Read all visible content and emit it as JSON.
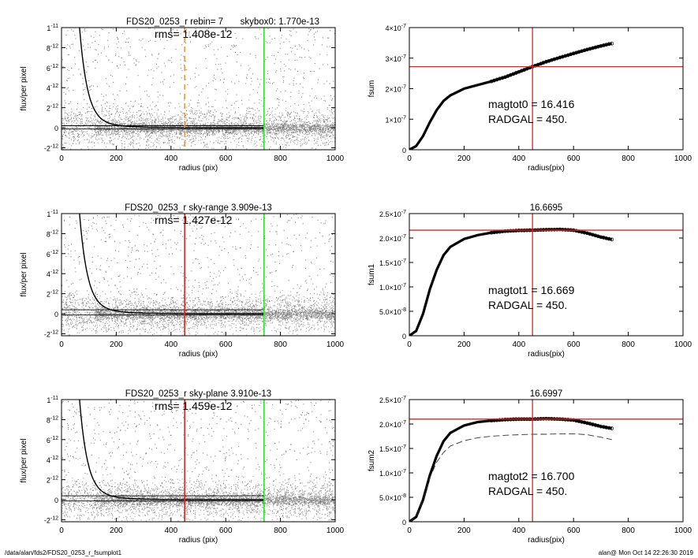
{
  "footer": {
    "path": "/data/alan/fds2/FDS20_0253_r_fsumplot1",
    "user_time": "alan@  Mon Oct 14 22:26:30 2019"
  },
  "colors": {
    "red": "#e8201e",
    "green": "#2fe02f",
    "orange": "#f09a38",
    "scatter": "#8a8a8a",
    "scatter_dark": "#505050"
  },
  "chart_data": [
    {
      "id": "profile-top",
      "type": "scatter",
      "title_left": "FDS20_0253_r rebin= 7",
      "title_right": "skybox0:  1.770e-13",
      "annotation": "rms= 1.408e-12",
      "xlabel": "radius (pix)",
      "ylabel": "flux/per pixel",
      "xlim": [
        0,
        1000
      ],
      "ylim": [
        -2.2e-12,
        1e-11
      ],
      "xticks": [
        "0",
        "200",
        "400",
        "600",
        "800",
        "1000"
      ],
      "yticks": [
        {
          "v": 1e-11,
          "m": "1",
          "e": "-11"
        },
        {
          "v": 8e-12,
          "m": "8",
          "e": "-12"
        },
        {
          "v": 6e-12,
          "m": "6",
          "e": "-12"
        },
        {
          "v": 4e-12,
          "m": "4",
          "e": "-12"
        },
        {
          "v": 2e-12,
          "m": "2",
          "e": "-12"
        },
        {
          "v": 0,
          "m": "0",
          "e": ""
        },
        {
          "v": -2e-12,
          "m": "-2",
          "e": "-12"
        }
      ],
      "vlines": [
        {
          "x": 450,
          "color": "orange",
          "dashed": true
        },
        {
          "x": 740,
          "color": "green",
          "dashed": false
        }
      ],
      "hlines": [
        {
          "y": 2e-13,
          "color": "black"
        },
        {
          "y": -1.3e-13,
          "color": "black"
        }
      ]
    },
    {
      "id": "fsum-top",
      "type": "line",
      "title": "",
      "annotation_lines": [
        "magtot0 =  16.416",
        "RADGAL =    450."
      ],
      "xlabel": "radius(pix)",
      "ylabel": "fsum",
      "xlim": [
        0,
        1000
      ],
      "ylim": [
        0,
        4e-07
      ],
      "xticks": [
        "0",
        "200",
        "400",
        "600",
        "800",
        "1000"
      ],
      "yticks": [
        {
          "v": 0,
          "m": "0",
          "e": ""
        },
        {
          "v": 1e-07,
          "m": "1×10",
          "e": "-7"
        },
        {
          "v": 2e-07,
          "m": "2×10",
          "e": "-7"
        },
        {
          "v": 3e-07,
          "m": "3×10",
          "e": "-7"
        },
        {
          "v": 4e-07,
          "m": "4×10",
          "e": "-7"
        }
      ],
      "vline": 450,
      "hline": 2.72e-07,
      "series": [
        {
          "x": [
            0,
            25,
            50,
            75,
            100,
            125,
            150,
            200,
            250,
            300,
            350,
            400,
            450,
            500,
            550,
            600,
            650,
            700,
            740
          ],
          "y": [
            0,
            1.2e-08,
            4.5e-08,
            9e-08,
            1.3e-07,
            1.6e-07,
            1.78e-07,
            2e-07,
            2.12e-07,
            2.24e-07,
            2.38e-07,
            2.55e-07,
            2.72e-07,
            2.88e-07,
            3.02e-07,
            3.15e-07,
            3.28e-07,
            3.4e-07,
            3.48e-07
          ]
        }
      ]
    },
    {
      "id": "profile-mid",
      "type": "scatter",
      "title_left": "FDS20_0253_r sky-range  3.909e-13",
      "title_right": "",
      "annotation": "rms= 1.427e-12",
      "xlabel": "radius (pix)",
      "ylabel": "flux/per pixel",
      "xlim": [
        0,
        1000
      ],
      "ylim": [
        -2.2e-12,
        1e-11
      ],
      "xticks": [
        "0",
        "200",
        "400",
        "600",
        "800",
        "1000"
      ],
      "yticks": [
        {
          "v": 1e-11,
          "m": "1",
          "e": "-11"
        },
        {
          "v": 8e-12,
          "m": "8",
          "e": "-12"
        },
        {
          "v": 6e-12,
          "m": "6",
          "e": "-12"
        },
        {
          "v": 4e-12,
          "m": "4",
          "e": "-12"
        },
        {
          "v": 2e-12,
          "m": "2",
          "e": "-12"
        },
        {
          "v": 0,
          "m": "0",
          "e": ""
        },
        {
          "v": -2e-12,
          "m": "-2",
          "e": "-12"
        }
      ],
      "vlines": [
        {
          "x": 450,
          "color": "red",
          "dashed": false
        },
        {
          "x": 740,
          "color": "green",
          "dashed": false
        }
      ],
      "hlines": [
        {
          "y": 3.9e-13,
          "color": "black"
        },
        {
          "y": -1.3e-13,
          "color": "black"
        }
      ]
    },
    {
      "id": "fsum-mid",
      "type": "line",
      "title": "16.6695",
      "annotation_lines": [
        "magtot1 =  16.669",
        "RADGAL =    450."
      ],
      "xlabel": "radius(pix)",
      "ylabel": "fsum1",
      "xlim": [
        0,
        1000
      ],
      "ylim": [
        0,
        2.5e-07
      ],
      "xticks": [
        "0",
        "200",
        "400",
        "600",
        "800",
        "1000"
      ],
      "yticks": [
        {
          "v": 0,
          "m": "0",
          "e": ""
        },
        {
          "v": 5e-08,
          "m": "5.0×10",
          "e": "-8"
        },
        {
          "v": 1e-07,
          "m": "1.0×10",
          "e": "-7"
        },
        {
          "v": 1.5e-07,
          "m": "1.5×10",
          "e": "-7"
        },
        {
          "v": 2e-07,
          "m": "2.0×10",
          "e": "-7"
        },
        {
          "v": 2.5e-07,
          "m": "2.5×10",
          "e": "-7"
        }
      ],
      "vline": 450,
      "hline": 2.16e-07,
      "series": [
        {
          "x": [
            0,
            25,
            50,
            75,
            100,
            125,
            150,
            200,
            250,
            300,
            350,
            400,
            450,
            500,
            550,
            600,
            650,
            700,
            740
          ],
          "y": [
            0,
            1e-08,
            4.5e-08,
            9.5e-08,
            1.35e-07,
            1.65e-07,
            1.82e-07,
            1.98e-07,
            2.06e-07,
            2.11e-07,
            2.14e-07,
            2.155e-07,
            2.16e-07,
            2.17e-07,
            2.175e-07,
            2.16e-07,
            2.1e-07,
            2.02e-07,
            1.97e-07
          ]
        }
      ]
    },
    {
      "id": "profile-bot",
      "type": "scatter",
      "title_left": "FDS20_0253_r sky-plane  3.910e-13",
      "title_right": "",
      "annotation": "rms= 1.459e-12",
      "xlabel": "radius (pix)",
      "ylabel": "flux/per pixel",
      "xlim": [
        0,
        1000
      ],
      "ylim": [
        -2.2e-12,
        1e-11
      ],
      "xticks": [
        "0",
        "200",
        "400",
        "600",
        "800",
        "1000"
      ],
      "yticks": [
        {
          "v": 1e-11,
          "m": "1",
          "e": "-11"
        },
        {
          "v": 8e-12,
          "m": "8",
          "e": "-12"
        },
        {
          "v": 6e-12,
          "m": "6",
          "e": "-12"
        },
        {
          "v": 4e-12,
          "m": "4",
          "e": "-12"
        },
        {
          "v": 2e-12,
          "m": "2",
          "e": "-12"
        },
        {
          "v": 0,
          "m": "0",
          "e": ""
        },
        {
          "v": -2e-12,
          "m": "-2",
          "e": "-12"
        }
      ],
      "vlines": [
        {
          "x": 450,
          "color": "red",
          "dashed": false
        },
        {
          "x": 740,
          "color": "green",
          "dashed": false
        }
      ],
      "hlines": [
        {
          "y": 3.9e-13,
          "color": "black"
        },
        {
          "y": -1.3e-13,
          "color": "black"
        }
      ]
    },
    {
      "id": "fsum-bot",
      "type": "line",
      "title": "16.6997",
      "annotation_lines": [
        "magtot2 =  16.700",
        "RADGAL =    450."
      ],
      "xlabel": "radius(pix)",
      "ylabel": "fsum2",
      "xlim": [
        0,
        1000
      ],
      "ylim": [
        0,
        2.5e-07
      ],
      "xticks": [
        "0",
        "200",
        "400",
        "600",
        "800",
        "1000"
      ],
      "yticks": [
        {
          "v": 0,
          "m": "0",
          "e": ""
        },
        {
          "v": 5e-08,
          "m": "5.0×10",
          "e": "-8"
        },
        {
          "v": 1e-07,
          "m": "1.0×10",
          "e": "-7"
        },
        {
          "v": 1.5e-07,
          "m": "1.5×10",
          "e": "-7"
        },
        {
          "v": 2e-07,
          "m": "2.0×10",
          "e": "-7"
        },
        {
          "v": 2.5e-07,
          "m": "2.5×10",
          "e": "-7"
        }
      ],
      "vline": 450,
      "hline": 2.1e-07,
      "series": [
        {
          "x": [
            0,
            25,
            50,
            75,
            100,
            125,
            150,
            200,
            250,
            300,
            350,
            400,
            450,
            500,
            550,
            600,
            650,
            700,
            740
          ],
          "y": [
            0,
            1e-08,
            4.5e-08,
            9.5e-08,
            1.35e-07,
            1.65e-07,
            1.82e-07,
            1.97e-07,
            2.04e-07,
            2.07e-07,
            2.09e-07,
            2.1e-07,
            2.1e-07,
            2.11e-07,
            2.1e-07,
            2.08e-07,
            2.02e-07,
            1.95e-07,
            1.91e-07
          ]
        },
        {
          "dashed": true,
          "x": [
            0,
            25,
            50,
            75,
            100,
            125,
            150,
            200,
            250,
            300,
            350,
            400,
            450,
            500,
            550,
            600,
            650,
            700,
            740
          ],
          "y": [
            0,
            1e-08,
            4.5e-08,
            9e-08,
            1.22e-07,
            1.42e-07,
            1.55e-07,
            1.66e-07,
            1.72e-07,
            1.75e-07,
            1.77e-07,
            1.78e-07,
            1.79e-07,
            1.79e-07,
            1.8e-07,
            1.8e-07,
            1.78e-07,
            1.73e-07,
            1.68e-07
          ]
        }
      ]
    }
  ]
}
